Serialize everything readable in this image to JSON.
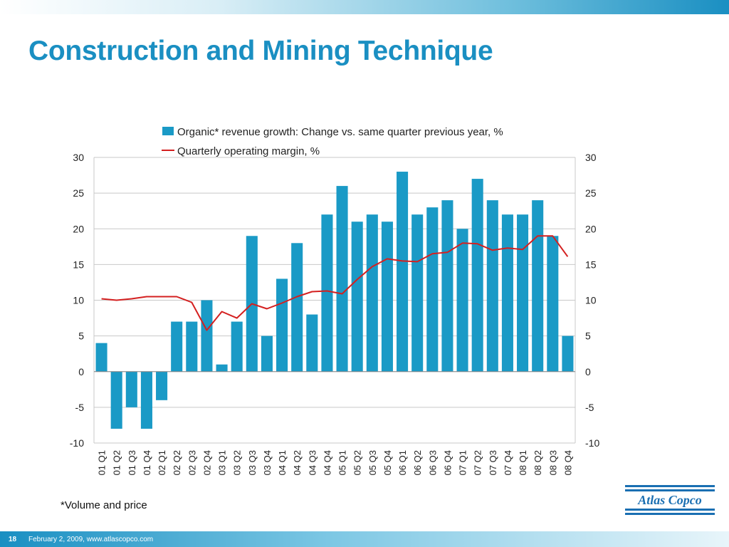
{
  "slide": {
    "title": "Construction and Mining Technique",
    "footnote": "*Volume and price",
    "page_number": "18",
    "footer_text": "February 2, 2009, www.atlascopco.com",
    "logo_text": "Atlas Copco"
  },
  "colors": {
    "title": "#1a8fc2",
    "bar": "#1a9ac6",
    "line": "#d42020",
    "grid": "#c8c8c8"
  },
  "chart_data": {
    "type": "bar",
    "title": "",
    "xlabel": "",
    "ylabel": "",
    "ylim": [
      -10,
      30
    ],
    "y2lim": [
      -10,
      30
    ],
    "yticks": [
      -10,
      -5,
      0,
      5,
      10,
      15,
      20,
      25,
      30
    ],
    "grid": true,
    "legend_position": "top",
    "categories": [
      "01 Q1",
      "01 Q2",
      "01 Q3",
      "01 Q4",
      "02 Q1",
      "02 Q2",
      "02 Q3",
      "02 Q4",
      "03 Q1",
      "03 Q2",
      "03 Q3",
      "03 Q4",
      "04 Q1",
      "04 Q2",
      "04 Q3",
      "04 Q4",
      "05 Q1",
      "05 Q2",
      "05 Q3",
      "05 Q4",
      "06 Q1",
      "06 Q2",
      "06 Q3",
      "06 Q4",
      "07 Q1",
      "07 Q2",
      "07 Q3",
      "07 Q4",
      "08 Q1",
      "08 Q2",
      "08 Q3",
      "08 Q4"
    ],
    "series": [
      {
        "name": "Organic* revenue growth: Change vs. same quarter previous year, %",
        "type": "bar",
        "values": [
          4,
          -8,
          -5,
          -8,
          -4,
          7,
          7,
          10,
          1,
          7,
          19,
          5,
          13,
          18,
          8,
          22,
          26,
          21,
          22,
          21,
          28,
          22,
          23,
          24,
          20,
          27,
          24,
          22,
          22,
          24,
          19,
          5
        ]
      },
      {
        "name": "Quarterly operating margin, %",
        "type": "line",
        "values": [
          10.2,
          10.0,
          10.2,
          10.5,
          10.5,
          10.5,
          9.7,
          5.8,
          8.4,
          7.5,
          9.5,
          8.8,
          9.6,
          10.5,
          11.2,
          11.3,
          10.9,
          12.9,
          14.7,
          15.8,
          15.5,
          15.4,
          16.5,
          16.7,
          18.0,
          17.9,
          17.0,
          17.3,
          17.1,
          19.0,
          19.0,
          16.1
        ]
      }
    ]
  }
}
